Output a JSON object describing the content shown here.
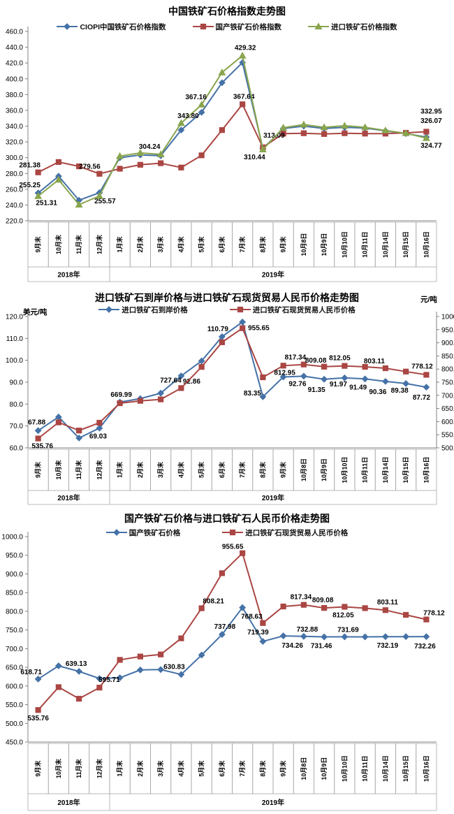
{
  "colors": {
    "blue": "#4572A7",
    "red": "#AA4643",
    "green": "#89A54E",
    "axis": "#808080",
    "cell_border": "#a6a6a6",
    "label_text": "#000000"
  },
  "chart_data": [
    {
      "type": "line",
      "title": "中国铁矿石价格指数走势图",
      "y_axis": {
        "min": 220,
        "max": 460,
        "step": 20
      },
      "categories": [
        "9月末",
        "10月末",
        "11月末",
        "12月末",
        "1月末",
        "2月末",
        "3月末",
        "4月末",
        "5月末",
        "6月末",
        "7月末",
        "8月末",
        "9月末",
        "10月8日",
        "10月9日",
        "10月10日",
        "10月11日",
        "10月14日",
        "10月15日",
        "10月16日"
      ],
      "year_groups": [
        {
          "label": "2018年",
          "span": 4
        },
        {
          "label": "2019年",
          "span": 16
        }
      ],
      "legend_position": "top",
      "grid": false,
      "series": [
        {
          "name": "CIOPI中国铁矿石价格指数",
          "color": "#4572A7",
          "marker": "diamond",
          "axis": "left",
          "values": [
            255.25,
            276.5,
            246,
            255.57,
            300,
            303.5,
            302.5,
            335,
            357.5,
            395,
            420.5,
            311.5,
            337,
            340,
            337,
            338.5,
            337.5,
            334,
            330.5,
            326.07
          ],
          "labels": [
            {
              "i": 0,
              "t": "255.25",
              "dx": -12,
              "dy": -8
            },
            {
              "i": 3,
              "t": "255.57",
              "dx": 8,
              "dy": 15
            },
            {
              "i": 19,
              "t": "326.07",
              "dx": 7,
              "dy": -20
            }
          ]
        },
        {
          "name": "国产铁矿石价格指数",
          "color": "#AA4643",
          "marker": "square",
          "axis": "left",
          "values": [
            281.38,
            294.5,
            289,
            279.56,
            286,
            291,
            293,
            287.5,
            303,
            335,
            367.64,
            313.09,
            330.5,
            331,
            330,
            331,
            330.5,
            330.5,
            331.5,
            332.95
          ],
          "labels": [
            {
              "i": 0,
              "t": "281.38",
              "dx": -12,
              "dy": -7
            },
            {
              "i": 3,
              "t": "279.56",
              "dx": -14,
              "dy": -7
            },
            {
              "i": 10,
              "t": "367.64",
              "dx": 2,
              "dy": -8
            },
            {
              "i": 11,
              "t": "313.09",
              "dx": 16,
              "dy": -14
            },
            {
              "i": 19,
              "t": "332.95",
              "dx": 7,
              "dy": -26
            }
          ]
        },
        {
          "name": "进口铁矿石价格指数",
          "color": "#89A54E",
          "marker": "triangle",
          "axis": "left",
          "values": [
            251.31,
            272,
            240.5,
            251.5,
            302,
            306,
            304.24,
            343.8,
            367.16,
            408,
            429.32,
            310.44,
            338,
            342,
            338.5,
            340.5,
            338.5,
            334.5,
            331,
            324.77
          ],
          "labels": [
            {
              "i": 0,
              "t": "251.31",
              "dx": 12,
              "dy": 13
            },
            {
              "i": 6,
              "t": "304.24",
              "dx": -16,
              "dy": -8
            },
            {
              "i": 7,
              "t": "343.80",
              "dx": 10,
              "dy": -7
            },
            {
              "i": 8,
              "t": "367.16",
              "dx": -8,
              "dy": -8
            },
            {
              "i": 10,
              "t": "429.32",
              "dx": 4,
              "dy": -8
            },
            {
              "i": 11,
              "t": "310.44",
              "dx": -12,
              "dy": 14
            },
            {
              "i": 19,
              "t": "324.77",
              "dx": 7,
              "dy": 14
            }
          ]
        }
      ]
    },
    {
      "type": "line",
      "title": "进口铁矿石到岸价格与进口铁矿石现货贸易人民币价格走势图",
      "left_unit": "美元/吨",
      "right_unit": "元/吨",
      "y_axis": {
        "min": 60,
        "max": 120,
        "step": 10
      },
      "y_axis_right": {
        "min": 500,
        "max": 1000,
        "step": 50
      },
      "categories": [
        "9月末",
        "10月末",
        "11月末",
        "12月末",
        "1月末",
        "2月末",
        "3月末",
        "4月末",
        "5月末",
        "6月末",
        "7月末",
        "8月末",
        "9月末",
        "10月8日",
        "10月9日",
        "10月10日",
        "10月11日",
        "10月14日",
        "10月15日",
        "10月16日"
      ],
      "year_groups": [
        {
          "label": "2018年",
          "span": 4
        },
        {
          "label": "2019年",
          "span": 16
        }
      ],
      "legend_position": "top",
      "grid": false,
      "series": [
        {
          "name": "进口铁矿石到岸价格",
          "color": "#4572A7",
          "marker": "diamond",
          "axis": "left",
          "values": [
            67.88,
            74.1,
            64.5,
            69.03,
            80.9,
            82.5,
            85.0,
            92.86,
            99.7,
            110.79,
            117.5,
            83.35,
            92.4,
            92.76,
            91.35,
            91.97,
            91.49,
            90.36,
            89.38,
            87.72
          ],
          "labels": [
            {
              "i": 0,
              "t": "67.88",
              "dx": -2,
              "dy": -9
            },
            {
              "i": 3,
              "t": "69.03",
              "dx": -2,
              "dy": 15
            },
            {
              "i": 7,
              "t": "92.86",
              "dx": 15,
              "dy": 11
            },
            {
              "i": 9,
              "t": "110.79",
              "dx": -6,
              "dy": -8
            },
            {
              "i": 11,
              "t": "83.35",
              "dx": -15,
              "dy": -2
            },
            {
              "i": 13,
              "t": "92.76",
              "dx": -9,
              "dy": 14
            },
            {
              "i": 14,
              "t": "91.35",
              "dx": -11,
              "dy": 18
            },
            {
              "i": 15,
              "t": "91.97",
              "dx": -9,
              "dy": 12
            },
            {
              "i": 16,
              "t": "91.49",
              "dx": -10,
              "dy": 15
            },
            {
              "i": 17,
              "t": "90.36",
              "dx": -11,
              "dy": 18
            },
            {
              "i": 18,
              "t": "89.38",
              "dx": -9,
              "dy": 13
            },
            {
              "i": 19,
              "t": "87.72",
              "dx": -7,
              "dy": 18
            }
          ]
        },
        {
          "name": "进口铁矿石现货贸易人民币价格",
          "color": "#AA4643",
          "marker": "square",
          "axis": "right",
          "values": [
            535.76,
            597,
            566,
            595.71,
            669.99,
            679,
            684.5,
            727.64,
            808.21,
            902,
            955.65,
            768.63,
            812.95,
            817.34,
            809.08,
            812.05,
            808.5,
            803.11,
            790.5,
            778.12
          ],
          "labels": [
            {
              "i": 0,
              "t": "535.76",
              "dx": 6,
              "dy": 14
            },
            {
              "i": 4,
              "t": "669.99",
              "dx": 2,
              "dy": -9
            },
            {
              "i": 7,
              "t": "727.64",
              "dx": -15,
              "dy": -8
            },
            {
              "i": 10,
              "t": "955.65",
              "dx": 8,
              "dy": 3,
              "a": "start"
            },
            {
              "i": 12,
              "t": "812.95",
              "dx": 2,
              "dy": 13
            },
            {
              "i": 13,
              "t": "817.34",
              "dx": -12,
              "dy": -7
            },
            {
              "i": 14,
              "t": "809.08",
              "dx": -12,
              "dy": -6
            },
            {
              "i": 15,
              "t": "812.05",
              "dx": -7,
              "dy": -8
            },
            {
              "i": 17,
              "t": "803.11",
              "dx": -16,
              "dy": -7
            },
            {
              "i": 19,
              "t": "778.12",
              "dx": -6,
              "dy": -9
            }
          ]
        }
      ]
    },
    {
      "type": "line",
      "title": "国产铁矿石价格与进口铁矿石人民币价格走势图",
      "y_axis": {
        "min": 450,
        "max": 1000,
        "step": 50
      },
      "categories": [
        "9月末",
        "10月末",
        "11月末",
        "12月末",
        "1月末",
        "2月末",
        "3月末",
        "4月末",
        "5月末",
        "6月末",
        "7月末",
        "8月末",
        "9月末",
        "10月8日",
        "10月9日",
        "10月10日",
        "10月11日",
        "10月14日",
        "10月15日",
        "10月16日"
      ],
      "year_groups": [
        {
          "label": "2018年",
          "span": 4
        },
        {
          "label": "2019年",
          "span": 16
        }
      ],
      "legend_position": "top",
      "grid": false,
      "series": [
        {
          "name": "国产铁矿石价格",
          "color": "#4572A7",
          "marker": "diamond",
          "axis": "left",
          "values": [
            618.71,
            654,
            639.13,
            620,
            622,
            643,
            644,
            630.83,
            683,
            737.98,
            810,
            719.39,
            734.26,
            732.88,
            731.46,
            731.69,
            731.6,
            732.19,
            732.2,
            732.26
          ],
          "labels": [
            {
              "i": 0,
              "t": "618.71",
              "dx": -10,
              "dy": -7
            },
            {
              "i": 2,
              "t": "639.13",
              "dx": -4,
              "dy": -8
            },
            {
              "i": 7,
              "t": "630.83",
              "dx": -10,
              "dy": -8
            },
            {
              "i": 9,
              "t": "737.98",
              "dx": 4,
              "dy": -8
            },
            {
              "i": 11,
              "t": "719.39",
              "dx": -7,
              "dy": -10
            },
            {
              "i": 12,
              "t": "734.26",
              "dx": 13,
              "dy": 17
            },
            {
              "i": 13,
              "t": "732.88",
              "dx": 5,
              "dy": -7
            },
            {
              "i": 14,
              "t": "731.46",
              "dx": -4,
              "dy": 16
            },
            {
              "i": 15,
              "t": "731.69",
              "dx": 5,
              "dy": -7
            },
            {
              "i": 17,
              "t": "732.19",
              "dx": 3,
              "dy": 16
            },
            {
              "i": 19,
              "t": "732.26",
              "dx": -2,
              "dy": 17
            }
          ]
        },
        {
          "name": "进口铁矿石现货贸易人民币价格",
          "color": "#AA4643",
          "marker": "square",
          "axis": "left",
          "values": [
            535.76,
            597,
            566,
            595.71,
            669.99,
            679,
            684.5,
            727.64,
            808.21,
            902,
            955.65,
            768.63,
            812.95,
            817.34,
            809.08,
            812.05,
            808.5,
            803.11,
            790.5,
            778.12
          ],
          "labels": [
            {
              "i": 0,
              "t": "535.76",
              "dx": 0,
              "dy": 15
            },
            {
              "i": 3,
              "t": "595.71",
              "dx": 14,
              "dy": -8
            },
            {
              "i": 8,
              "t": "808.21",
              "dx": 17,
              "dy": -7
            },
            {
              "i": 10,
              "t": "955.65",
              "dx": -14,
              "dy": -6
            },
            {
              "i": 11,
              "t": "768.63",
              "dx": -16,
              "dy": -6
            },
            {
              "i": 13,
              "t": "817.34",
              "dx": -4,
              "dy": -8
            },
            {
              "i": 14,
              "t": "809.08",
              "dx": -2,
              "dy": -8
            },
            {
              "i": 15,
              "t": "812.05",
              "dx": -2,
              "dy": 15
            },
            {
              "i": 17,
              "t": "803.11",
              "dx": 3,
              "dy": -8
            },
            {
              "i": 19,
              "t": "778.12",
              "dx": 11,
              "dy": -6
            }
          ]
        }
      ]
    }
  ]
}
